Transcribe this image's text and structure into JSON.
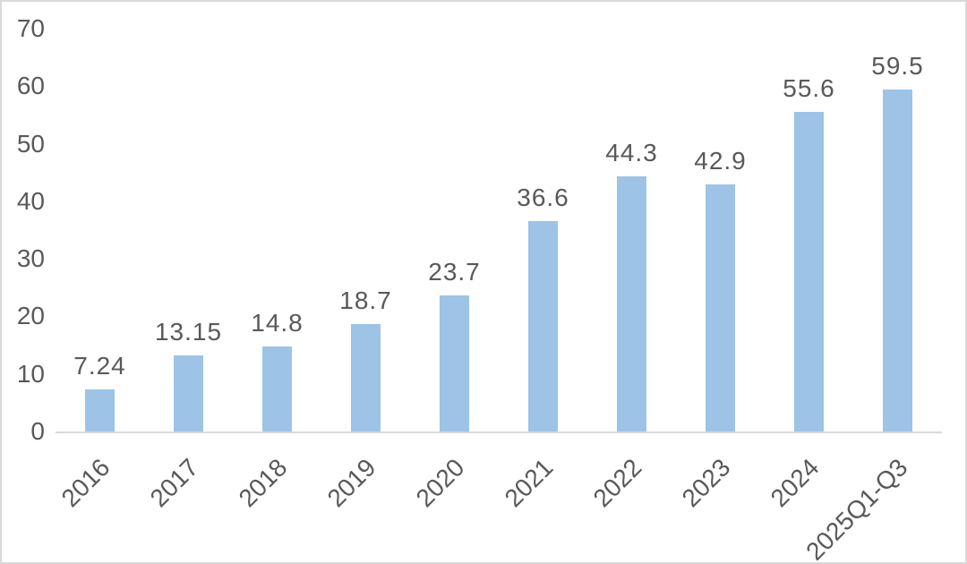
{
  "chart_data": {
    "type": "bar",
    "title": "",
    "categories": [
      "2016",
      "2017",
      "2018",
      "2019",
      "2020",
      "2021",
      "2022",
      "2023",
      "2024",
      "2025Q1-Q3"
    ],
    "values": [
      7.24,
      13.15,
      14.8,
      18.7,
      23.7,
      36.6,
      44.3,
      42.9,
      55.6,
      59.5
    ],
    "value_labels": [
      "7.24",
      "13.15",
      "14.8",
      "18.7",
      "23.7",
      "36.6",
      "44.3",
      "42.9",
      "55.6",
      "59.5"
    ],
    "y_ticks": [
      0,
      10,
      20,
      30,
      40,
      50,
      60,
      70
    ],
    "ylim": [
      0,
      70
    ],
    "xlabel": "",
    "ylabel": "",
    "grid": false,
    "legend": false,
    "data_labels": true,
    "x_label_rotation_deg": -45,
    "colors": {
      "bar_fill": "#9dc3e6",
      "label_text": "#595959",
      "axis_line": "#d9d9d9",
      "frame_border": "#d9d9d9",
      "background": "#ffffff"
    }
  }
}
